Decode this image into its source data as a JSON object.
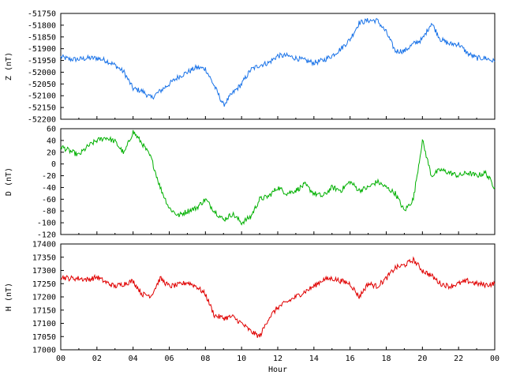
{
  "chart_data": [
    {
      "type": "line",
      "ylabel": "Z (nT)",
      "xlim": [
        0,
        24
      ],
      "ylim": [
        -52200,
        -51750
      ],
      "yticks": [
        -52200,
        -52150,
        -52100,
        -52050,
        -52000,
        -51950,
        -51900,
        -51850,
        -51800,
        -51750
      ],
      "color": "#1a73e8",
      "series": [
        {
          "x": [
            0,
            0.5,
            1,
            1.5,
            2,
            2.5,
            3,
            3.5,
            4,
            4.5,
            5,
            5.5,
            6,
            6.5,
            7,
            7.5,
            8,
            8.5,
            9,
            9.5,
            10,
            10.5,
            11,
            11.5,
            12,
            12.5,
            13,
            13.5,
            14,
            14.5,
            15,
            15.5,
            16,
            16.5,
            17,
            17.5,
            18,
            18.5,
            19,
            19.5,
            20,
            20.5,
            21,
            21.5,
            22,
            22.5,
            23,
            23.5,
            24
          ],
          "y": [
            -51935,
            -51945,
            -51945,
            -51940,
            -51940,
            -51950,
            -51970,
            -52000,
            -52070,
            -52080,
            -52110,
            -52080,
            -52050,
            -52020,
            -52000,
            -51980,
            -51985,
            -52060,
            -52140,
            -52090,
            -52050,
            -51990,
            -51970,
            -51960,
            -51930,
            -51930,
            -51940,
            -51950,
            -51960,
            -51950,
            -51930,
            -51900,
            -51860,
            -51790,
            -51780,
            -51780,
            -51830,
            -51910,
            -51910,
            -51880,
            -51860,
            -51790,
            -51860,
            -51880,
            -51880,
            -51920,
            -51940,
            -51940,
            -51955
          ]
        }
      ]
    },
    {
      "type": "line",
      "ylabel": "D (nT)",
      "xlim": [
        0,
        24
      ],
      "ylim": [
        -120,
        60
      ],
      "yticks": [
        -120,
        -100,
        -80,
        -60,
        -40,
        -20,
        0,
        20,
        40,
        60
      ],
      "color": "#00b000",
      "series": [
        {
          "x": [
            0,
            0.5,
            1,
            1.5,
            2,
            2.5,
            3,
            3.5,
            4,
            4.5,
            5,
            5.5,
            6,
            6.5,
            7,
            7.5,
            8,
            8.5,
            9,
            9.5,
            10,
            10.5,
            11,
            11.5,
            12,
            12.5,
            13,
            13.5,
            14,
            14.5,
            15,
            15.5,
            16,
            16.5,
            17,
            17.5,
            18,
            18.5,
            19,
            19.5,
            20,
            20.5,
            21,
            21.5,
            22,
            22.5,
            23,
            23.5,
            24
          ],
          "y": [
            30,
            22,
            15,
            30,
            40,
            45,
            38,
            18,
            55,
            35,
            10,
            -40,
            -75,
            -88,
            -80,
            -75,
            -60,
            -80,
            -95,
            -85,
            -100,
            -90,
            -60,
            -55,
            -40,
            -50,
            -45,
            -35,
            -50,
            -55,
            -40,
            -45,
            -30,
            -45,
            -40,
            -30,
            -40,
            -50,
            -80,
            -60,
            40,
            -20,
            -10,
            -15,
            -20,
            -15,
            -20,
            -15,
            -40
          ]
        }
      ]
    },
    {
      "type": "line",
      "ylabel": "H (nT)",
      "xlabel": "Hour",
      "xlim": [
        0,
        24
      ],
      "ylim": [
        17000,
        17400
      ],
      "yticks": [
        17000,
        17050,
        17100,
        17150,
        17200,
        17250,
        17300,
        17350,
        17400
      ],
      "xticks": [
        "00",
        "02",
        "04",
        "06",
        "08",
        "10",
        "12",
        "14",
        "16",
        "18",
        "20",
        "22",
        "00"
      ],
      "color": "#e00000",
      "series": [
        {
          "x": [
            0,
            0.5,
            1,
            1.5,
            2,
            2.5,
            3,
            3.5,
            4,
            4.5,
            5,
            5.5,
            6,
            6.5,
            7,
            7.5,
            8,
            8.5,
            9,
            9.5,
            10,
            10.5,
            11,
            11.5,
            12,
            12.5,
            13,
            13.5,
            14,
            14.5,
            15,
            15.5,
            16,
            16.5,
            17,
            17.5,
            18,
            18.5,
            19,
            19.5,
            20,
            20.5,
            21,
            21.5,
            22,
            22.5,
            23,
            23.5,
            24
          ],
          "y": [
            17275,
            17270,
            17270,
            17265,
            17275,
            17255,
            17240,
            17250,
            17260,
            17210,
            17205,
            17270,
            17240,
            17245,
            17255,
            17240,
            17210,
            17130,
            17120,
            17125,
            17100,
            17070,
            17050,
            17120,
            17160,
            17180,
            17200,
            17220,
            17240,
            17265,
            17270,
            17260,
            17250,
            17200,
            17250,
            17240,
            17270,
            17310,
            17320,
            17340,
            17300,
            17280,
            17250,
            17240,
            17250,
            17260,
            17250,
            17245,
            17250
          ]
        }
      ]
    }
  ]
}
